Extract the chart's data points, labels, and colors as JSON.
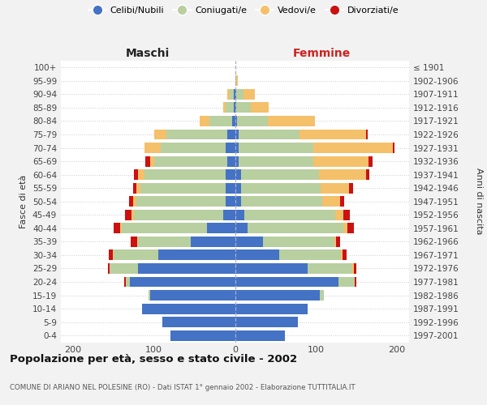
{
  "age_groups": [
    "0-4",
    "5-9",
    "10-14",
    "15-19",
    "20-24",
    "25-29",
    "30-34",
    "35-39",
    "40-44",
    "45-49",
    "50-54",
    "55-59",
    "60-64",
    "65-69",
    "70-74",
    "75-79",
    "80-84",
    "85-89",
    "90-94",
    "95-99",
    "100+"
  ],
  "birth_years": [
    "1997-2001",
    "1992-1996",
    "1987-1991",
    "1982-1986",
    "1977-1981",
    "1972-1976",
    "1967-1971",
    "1962-1966",
    "1957-1961",
    "1952-1956",
    "1947-1951",
    "1942-1946",
    "1937-1941",
    "1932-1936",
    "1927-1931",
    "1922-1926",
    "1917-1921",
    "1912-1916",
    "1907-1911",
    "1902-1906",
    "≤ 1901"
  ],
  "males_celibi": [
    80,
    90,
    115,
    105,
    130,
    120,
    95,
    55,
    35,
    15,
    12,
    12,
    12,
    10,
    12,
    10,
    4,
    2,
    2,
    0,
    0
  ],
  "males_coniugati": [
    0,
    0,
    0,
    2,
    5,
    35,
    55,
    65,
    105,
    110,
    110,
    105,
    100,
    90,
    80,
    75,
    28,
    10,
    5,
    0,
    0
  ],
  "males_vedovi": [
    0,
    0,
    0,
    0,
    0,
    0,
    1,
    1,
    2,
    3,
    4,
    5,
    8,
    5,
    20,
    15,
    12,
    3,
    3,
    0,
    0
  ],
  "males_divorziati": [
    0,
    0,
    0,
    0,
    2,
    2,
    5,
    8,
    8,
    8,
    5,
    4,
    5,
    6,
    0,
    0,
    0,
    0,
    0,
    0,
    0
  ],
  "females_nubili": [
    62,
    78,
    90,
    105,
    128,
    90,
    55,
    35,
    16,
    12,
    8,
    8,
    8,
    5,
    5,
    5,
    3,
    2,
    2,
    0,
    0
  ],
  "females_coniugate": [
    0,
    0,
    0,
    5,
    20,
    55,
    76,
    88,
    118,
    112,
    100,
    98,
    96,
    92,
    92,
    75,
    38,
    18,
    9,
    2,
    0
  ],
  "females_vedove": [
    0,
    0,
    0,
    0,
    0,
    2,
    2,
    2,
    5,
    10,
    22,
    35,
    58,
    68,
    98,
    82,
    58,
    22,
    14,
    2,
    0
  ],
  "females_divorziate": [
    0,
    0,
    0,
    0,
    2,
    3,
    5,
    5,
    8,
    8,
    5,
    5,
    4,
    5,
    2,
    2,
    0,
    0,
    0,
    0,
    0
  ],
  "color_celibi": "#4472c4",
  "color_coniugati": "#b8cfa0",
  "color_vedovi": "#f5c06a",
  "color_divorziati": "#cc1111",
  "title": "Popolazione per età, sesso e stato civile - 2002",
  "subtitle": "COMUNE DI ARIANO NEL POLESINE (RO) - Dati ISTAT 1° gennaio 2002 - Elaborazione TUTTITALIA.IT",
  "label_maschi": "Maschi",
  "label_femmine": "Femmine",
  "label_fasce": "Fasce di età",
  "label_anni": "Anni di nascita",
  "legend_labels": [
    "Celibi/Nubili",
    "Coniugati/e",
    "Vedovi/e",
    "Divorziati/e"
  ],
  "xlim": 215,
  "bg_color": "#f2f2f2",
  "plot_bg": "#ffffff"
}
